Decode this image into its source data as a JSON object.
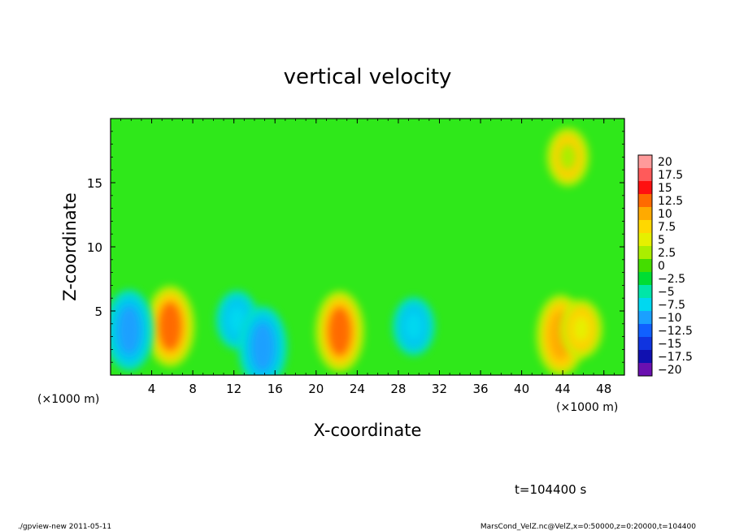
{
  "chart_data": {
    "type": "heatmap",
    "title": "vertical velocity",
    "xlabel": "X-coordinate",
    "ylabel": "Z-coordinate",
    "x_unit_label": "(×1000 m)",
    "y_unit_label": "(×1000 m)",
    "x_range": [
      0,
      50
    ],
    "y_range": [
      0,
      20
    ],
    "x_ticks": [
      "4",
      "8",
      "12",
      "16",
      "20",
      "24",
      "28",
      "32",
      "36",
      "40",
      "44",
      "48"
    ],
    "y_ticks": [
      "5",
      "10",
      "15"
    ],
    "colorbar": {
      "labels": [
        "20",
        "17.5",
        "15",
        "12.5",
        "10",
        "7.5",
        "5",
        "2.5",
        "0",
        "−2.5",
        "−5",
        "−7.5",
        "−10",
        "−12.5",
        "−15",
        "−17.5",
        "−20"
      ],
      "colors": [
        "#ff9a9a",
        "#ff5a5a",
        "#ff1010",
        "#ff6a00",
        "#ffaa00",
        "#ffd800",
        "#e6f000",
        "#aaee00",
        "#44dd00",
        "#00dd33",
        "#00e6a8",
        "#00d8f0",
        "#1aa0ff",
        "#1060ff",
        "#1034e0",
        "#1010b0",
        "#6a10b0"
      ]
    },
    "features": [
      {
        "x": 5.8,
        "z": 3.8,
        "value": 12.5
      },
      {
        "x": 22.3,
        "z": 3.4,
        "value": 12.5
      },
      {
        "x": 43.8,
        "z": 3.1,
        "value": 11
      },
      {
        "x": 45.8,
        "z": 3.6,
        "value": 5
      },
      {
        "x": 1.8,
        "z": 3.5,
        "value": -10
      },
      {
        "x": 12.3,
        "z": 4.3,
        "value": -8
      },
      {
        "x": 14.8,
        "z": 2.2,
        "value": -10
      },
      {
        "x": 29.5,
        "z": 3.8,
        "value": -8
      },
      {
        "x": 44.5,
        "z": 17.0,
        "value": 1.5
      }
    ]
  },
  "time_label": "t=104400 s",
  "footer_left": "./gpview-new   2011-05-11",
  "footer_right": "MarsCond_VelZ.nc@VelZ,x=0:50000,z=0:20000,t=104400"
}
